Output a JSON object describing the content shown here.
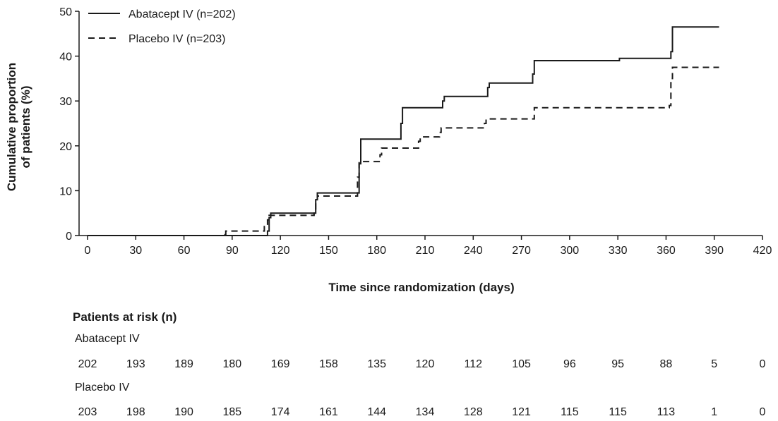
{
  "chart_data": {
    "type": "line",
    "ylabel": "Cumulative proportion of patients (%)",
    "ylabel_lines": [
      "Cumulative proportion",
      "of patients (%)"
    ],
    "xlabel": "Time since randomization (days)",
    "xlim": [
      0,
      420
    ],
    "ylim": [
      0,
      50
    ],
    "xticks": [
      0,
      30,
      60,
      90,
      120,
      150,
      180,
      210,
      240,
      270,
      300,
      330,
      360,
      390,
      420
    ],
    "yticks": [
      0,
      10,
      20,
      30,
      40,
      50
    ],
    "grid": false,
    "legend_position": "top-left",
    "series": [
      {
        "name": "Abatacept IV (n=202)",
        "style": "solid",
        "color": "#1a1a1a",
        "steps": [
          [
            0,
            0
          ],
          [
            112,
            1
          ],
          [
            113,
            4
          ],
          [
            114,
            5
          ],
          [
            141,
            5
          ],
          [
            142,
            8
          ],
          [
            143,
            9.5
          ],
          [
            168,
            9.5
          ],
          [
            169,
            16
          ],
          [
            170,
            21.5
          ],
          [
            194,
            21.5
          ],
          [
            195,
            25
          ],
          [
            196,
            28.5
          ],
          [
            220,
            28.5
          ],
          [
            221,
            30
          ],
          [
            222,
            31
          ],
          [
            248,
            31
          ],
          [
            249,
            33
          ],
          [
            250,
            34
          ],
          [
            276,
            34
          ],
          [
            277,
            36
          ],
          [
            278,
            39
          ],
          [
            330,
            39
          ],
          [
            331,
            39.5
          ],
          [
            362,
            39.5
          ],
          [
            363,
            41
          ],
          [
            364,
            46.5
          ],
          [
            393,
            46.5
          ]
        ]
      },
      {
        "name": "Placebo IV (n=203)",
        "style": "dashed",
        "color": "#1a1a1a",
        "steps": [
          [
            0,
            0
          ],
          [
            85,
            0.2
          ],
          [
            86,
            1
          ],
          [
            109,
            1
          ],
          [
            110,
            2
          ],
          [
            112,
            3.5
          ],
          [
            113,
            4.5
          ],
          [
            141,
            5
          ],
          [
            142,
            8
          ],
          [
            143,
            8.8
          ],
          [
            167,
            8.8
          ],
          [
            168,
            13
          ],
          [
            169,
            16.5
          ],
          [
            181,
            16.5
          ],
          [
            182,
            18
          ],
          [
            183,
            19.5
          ],
          [
            205,
            19.5
          ],
          [
            206,
            21
          ],
          [
            207,
            22
          ],
          [
            218,
            22
          ],
          [
            219,
            23
          ],
          [
            220,
            24
          ],
          [
            246,
            24
          ],
          [
            247,
            25
          ],
          [
            248,
            26
          ],
          [
            277,
            26
          ],
          [
            278,
            28.5
          ],
          [
            360,
            28.5
          ],
          [
            362,
            29
          ],
          [
            363,
            35
          ],
          [
            364,
            37.5
          ],
          [
            393,
            37.5
          ]
        ]
      }
    ],
    "risk_table": {
      "title": "Patients at risk (n)",
      "groups": [
        {
          "label": "Abatacept IV",
          "values": [
            "202",
            "193",
            "189",
            "180",
            "169",
            "158",
            "135",
            "120",
            "112",
            "105",
            "96",
            "95",
            "88",
            "5",
            "0"
          ]
        },
        {
          "label": "Placebo IV",
          "values": [
            "203",
            "198",
            "190",
            "185",
            "174",
            "161",
            "144",
            "134",
            "128",
            "121",
            "115",
            "115",
            "113",
            "1",
            "0"
          ]
        }
      ]
    }
  }
}
